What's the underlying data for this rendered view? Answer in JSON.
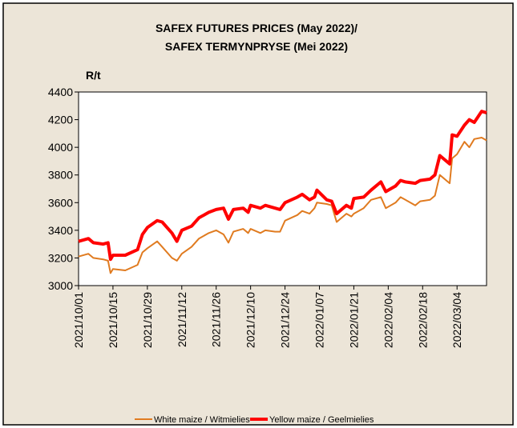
{
  "chart_data": {
    "type": "line",
    "title": [
      "SAFEX FUTURES PRICES (May 2022)/",
      "SAFEX TERMYNPRYSE  (Mei 2022)"
    ],
    "ylabel": "R/t",
    "x": [
      "2021/10/01",
      "2021/10/05",
      "2021/10/07",
      "2021/10/11",
      "2021/10/13",
      "2021/10/14",
      "2021/10/15",
      "2021/10/20",
      "2021/10/25",
      "2021/10/27",
      "2021/10/29",
      "2021/11/02",
      "2021/11/04",
      "2021/11/08",
      "2021/11/10",
      "2021/11/12",
      "2021/11/16",
      "2021/11/19",
      "2021/11/23",
      "2021/11/26",
      "2021/11/29",
      "2021/12/01",
      "2021/12/03",
      "2021/12/07",
      "2021/12/09",
      "2021/12/10",
      "2021/12/14",
      "2021/12/16",
      "2021/12/20",
      "2021/12/22",
      "2021/12/24",
      "2021/12/29",
      "2021/12/31",
      "2022/01/03",
      "2022/01/05",
      "2022/01/06",
      "2022/01/10",
      "2022/01/12",
      "2022/01/14",
      "2022/01/18",
      "2022/01/20",
      "2022/01/21",
      "2022/01/25",
      "2022/01/28",
      "2022/02/01",
      "2022/02/03",
      "2022/02/07",
      "2022/02/09",
      "2022/02/11",
      "2022/02/15",
      "2022/02/17",
      "2022/02/21",
      "2022/02/23",
      "2022/02/25",
      "2022/03/01",
      "2022/03/02",
      "2022/03/04",
      "2022/03/07",
      "2022/03/09",
      "2022/03/11",
      "2022/03/14",
      "2022/03/16"
    ],
    "series": [
      {
        "name": "White maize / Witmielies",
        "color": "#e07b20",
        "width": 2,
        "values": [
          3210,
          3230,
          3200,
          3190,
          3180,
          3090,
          3120,
          3110,
          3150,
          3240,
          3270,
          3320,
          3280,
          3200,
          3180,
          3230,
          3280,
          3340,
          3380,
          3400,
          3370,
          3310,
          3390,
          3410,
          3380,
          3410,
          3380,
          3400,
          3390,
          3390,
          3470,
          3510,
          3540,
          3520,
          3560,
          3600,
          3590,
          3580,
          3460,
          3520,
          3500,
          3520,
          3560,
          3620,
          3640,
          3560,
          3600,
          3640,
          3620,
          3580,
          3610,
          3620,
          3650,
          3800,
          3740,
          3920,
          3950,
          4040,
          4000,
          4060,
          4070,
          4050
        ]
      },
      {
        "name": "Yellow maize / Geelmielies",
        "color": "#ff0000",
        "width": 4,
        "values": [
          3320,
          3340,
          3310,
          3300,
          3310,
          3190,
          3220,
          3220,
          3260,
          3370,
          3420,
          3470,
          3460,
          3380,
          3320,
          3400,
          3430,
          3490,
          3530,
          3550,
          3560,
          3480,
          3550,
          3560,
          3530,
          3580,
          3560,
          3580,
          3560,
          3550,
          3600,
          3640,
          3660,
          3620,
          3640,
          3690,
          3620,
          3610,
          3520,
          3580,
          3560,
          3630,
          3640,
          3690,
          3750,
          3680,
          3720,
          3760,
          3750,
          3740,
          3760,
          3770,
          3800,
          3940,
          3880,
          4090,
          4080,
          4160,
          4200,
          4180,
          4260,
          4250
        ]
      }
    ],
    "xlim": [
      "2021/10/01",
      "2022/03/16"
    ],
    "xticks": [
      "2021/10/01",
      "2021/10/15",
      "2021/10/29",
      "2021/11/12",
      "2021/11/26",
      "2021/12/10",
      "2021/12/24",
      "2022/01/07",
      "2022/01/21",
      "2022/02/04",
      "2022/02/18",
      "2022/03/04"
    ],
    "ylim": [
      3000,
      4400
    ],
    "yticks": [
      3000,
      3200,
      3400,
      3600,
      3800,
      4000,
      4200,
      4400
    ],
    "legend": "bottom"
  }
}
